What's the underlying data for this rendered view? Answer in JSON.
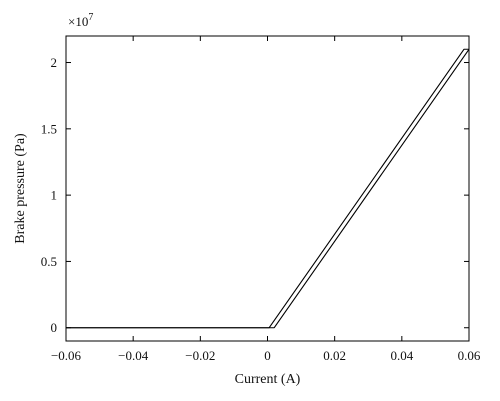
{
  "chart_data": {
    "type": "line",
    "title": "",
    "xlabel": "Current (A)",
    "ylabel": "Brake pressure (Pa)",
    "y_multiplier_label": "×10",
    "y_multiplier_exponent": "7",
    "xlim": [
      -0.06,
      0.06
    ],
    "ylim": [
      -0.1,
      2.2
    ],
    "x_ticks": [
      -0.06,
      -0.04,
      -0.02,
      0,
      0.02,
      0.04,
      0.06
    ],
    "x_tick_labels": [
      "−0.06",
      "−0.04",
      "−0.02",
      "0",
      "0.02",
      "0.04",
      "0.06"
    ],
    "y_ticks": [
      0,
      0.5,
      1,
      1.5,
      2
    ],
    "y_tick_labels": [
      "0",
      "0.5",
      "1",
      "1.5",
      "2"
    ],
    "grid": false,
    "line_color": "#000000",
    "series": [
      {
        "x": [
          -0.06,
          0.0005,
          0.0585,
          0.06
        ],
        "y": [
          0,
          0,
          2.1,
          2.1
        ]
      },
      {
        "x": [
          -0.06,
          0.002,
          0.06
        ],
        "y": [
          0,
          0,
          2.1
        ]
      }
    ]
  }
}
